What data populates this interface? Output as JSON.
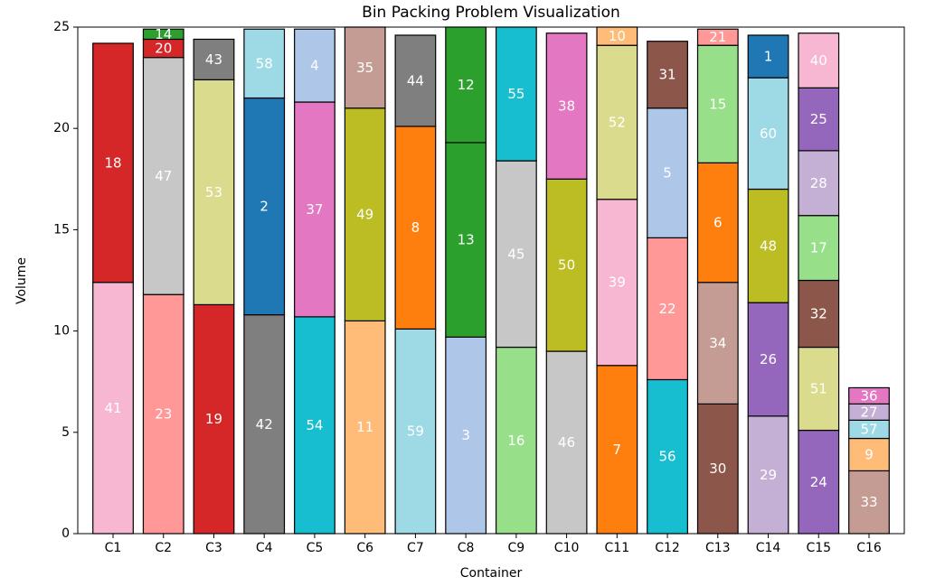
{
  "chart_data": {
    "type": "bar",
    "stacked": true,
    "title": "Bin Packing Problem Visualization",
    "xlabel": "Container",
    "ylabel": "Volume",
    "ylim": [
      0,
      25
    ],
    "yticks": [
      0,
      5,
      10,
      15,
      20,
      25
    ],
    "grid": false,
    "legend": "none",
    "bar_edge_color": "#000000",
    "segment_label_color": "#ffffff",
    "containers": [
      {
        "name": "C1",
        "items": [
          {
            "label": "41",
            "size": 12.4,
            "color": "#f7b6d2"
          },
          {
            "label": "18",
            "size": 11.8,
            "color": "#d62728"
          }
        ]
      },
      {
        "name": "C2",
        "items": [
          {
            "label": "23",
            "size": 11.8,
            "color": "#ff9896"
          },
          {
            "label": "47",
            "size": 11.7,
            "color": "#c7c7c7"
          },
          {
            "label": "20",
            "size": 0.9,
            "color": "#d62728"
          },
          {
            "label": "14",
            "size": 0.5,
            "color": "#2ca02c"
          }
        ]
      },
      {
        "name": "C3",
        "items": [
          {
            "label": "19",
            "size": 11.3,
            "color": "#d62728"
          },
          {
            "label": "53",
            "size": 11.1,
            "color": "#dbdb8d"
          },
          {
            "label": "43",
            "size": 2.0,
            "color": "#7f7f7f"
          }
        ]
      },
      {
        "name": "C4",
        "items": [
          {
            "label": "42",
            "size": 10.8,
            "color": "#7f7f7f"
          },
          {
            "label": "2",
            "size": 10.7,
            "color": "#1f77b4"
          },
          {
            "label": "58",
            "size": 3.4,
            "color": "#9edae5"
          }
        ]
      },
      {
        "name": "C5",
        "items": [
          {
            "label": "54",
            "size": 10.7,
            "color": "#17becf"
          },
          {
            "label": "37",
            "size": 10.6,
            "color": "#e377c2"
          },
          {
            "label": "4",
            "size": 3.6,
            "color": "#aec7e8"
          }
        ]
      },
      {
        "name": "C6",
        "items": [
          {
            "label": "11",
            "size": 10.5,
            "color": "#ffbb78"
          },
          {
            "label": "49",
            "size": 10.5,
            "color": "#bcbd22"
          },
          {
            "label": "35",
            "size": 4.0,
            "color": "#c49c94"
          }
        ]
      },
      {
        "name": "C7",
        "items": [
          {
            "label": "59",
            "size": 10.1,
            "color": "#9edae5"
          },
          {
            "label": "8",
            "size": 10.0,
            "color": "#ff7f0e"
          },
          {
            "label": "44",
            "size": 4.5,
            "color": "#7f7f7f"
          }
        ]
      },
      {
        "name": "C8",
        "items": [
          {
            "label": "3",
            "size": 9.7,
            "color": "#aec7e8"
          },
          {
            "label": "13",
            "size": 9.6,
            "color": "#2ca02c"
          },
          {
            "label": "12",
            "size": 5.7,
            "color": "#2ca02c"
          }
        ]
      },
      {
        "name": "C9",
        "items": [
          {
            "label": "16",
            "size": 9.2,
            "color": "#98df8a"
          },
          {
            "label": "45",
            "size": 9.2,
            "color": "#c7c7c7"
          },
          {
            "label": "55",
            "size": 6.6,
            "color": "#17becf"
          }
        ]
      },
      {
        "name": "C10",
        "items": [
          {
            "label": "46",
            "size": 9.0,
            "color": "#c7c7c7"
          },
          {
            "label": "50",
            "size": 8.5,
            "color": "#bcbd22"
          },
          {
            "label": "38",
            "size": 7.2,
            "color": "#e377c2"
          }
        ]
      },
      {
        "name": "C11",
        "items": [
          {
            "label": "7",
            "size": 8.3,
            "color": "#ff7f0e"
          },
          {
            "label": "39",
            "size": 8.2,
            "color": "#f7b6d2"
          },
          {
            "label": "52",
            "size": 7.6,
            "color": "#dbdb8d"
          },
          {
            "label": "10",
            "size": 0.9,
            "color": "#ffbb78"
          }
        ]
      },
      {
        "name": "C12",
        "items": [
          {
            "label": "56",
            "size": 7.6,
            "color": "#17becf"
          },
          {
            "label": "22",
            "size": 7.0,
            "color": "#ff9896"
          },
          {
            "label": "5",
            "size": 6.4,
            "color": "#aec7e8"
          },
          {
            "label": "31",
            "size": 3.3,
            "color": "#8c564b"
          }
        ]
      },
      {
        "name": "C13",
        "items": [
          {
            "label": "30",
            "size": 6.4,
            "color": "#8c564b"
          },
          {
            "label": "34",
            "size": 6.0,
            "color": "#c49c94"
          },
          {
            "label": "6",
            "size": 5.9,
            "color": "#ff7f0e"
          },
          {
            "label": "15",
            "size": 5.8,
            "color": "#98df8a"
          },
          {
            "label": "21",
            "size": 0.8,
            "color": "#ff9896"
          }
        ]
      },
      {
        "name": "C14",
        "items": [
          {
            "label": "29",
            "size": 5.8,
            "color": "#c5b0d5"
          },
          {
            "label": "26",
            "size": 5.6,
            "color": "#9467bd"
          },
          {
            "label": "48",
            "size": 5.6,
            "color": "#bcbd22"
          },
          {
            "label": "60",
            "size": 5.5,
            "color": "#9edae5"
          },
          {
            "label": "1",
            "size": 2.1,
            "color": "#1f77b4"
          }
        ]
      },
      {
        "name": "C15",
        "items": [
          {
            "label": "24",
            "size": 5.1,
            "color": "#9467bd"
          },
          {
            "label": "51",
            "size": 4.1,
            "color": "#dbdb8d"
          },
          {
            "label": "32",
            "size": 3.3,
            "color": "#8c564b"
          },
          {
            "label": "17",
            "size": 3.2,
            "color": "#98df8a"
          },
          {
            "label": "28",
            "size": 3.2,
            "color": "#c5b0d5"
          },
          {
            "label": "25",
            "size": 3.1,
            "color": "#9467bd"
          },
          {
            "label": "40",
            "size": 2.7,
            "color": "#f7b6d2"
          }
        ]
      },
      {
        "name": "C16",
        "items": [
          {
            "label": "33",
            "size": 3.1,
            "color": "#c49c94"
          },
          {
            "label": "9",
            "size": 1.6,
            "color": "#ffbb78"
          },
          {
            "label": "57",
            "size": 0.9,
            "color": "#9edae5"
          },
          {
            "label": "27",
            "size": 0.8,
            "color": "#c5b0d5"
          },
          {
            "label": "36",
            "size": 0.8,
            "color": "#e377c2"
          }
        ]
      }
    ]
  }
}
